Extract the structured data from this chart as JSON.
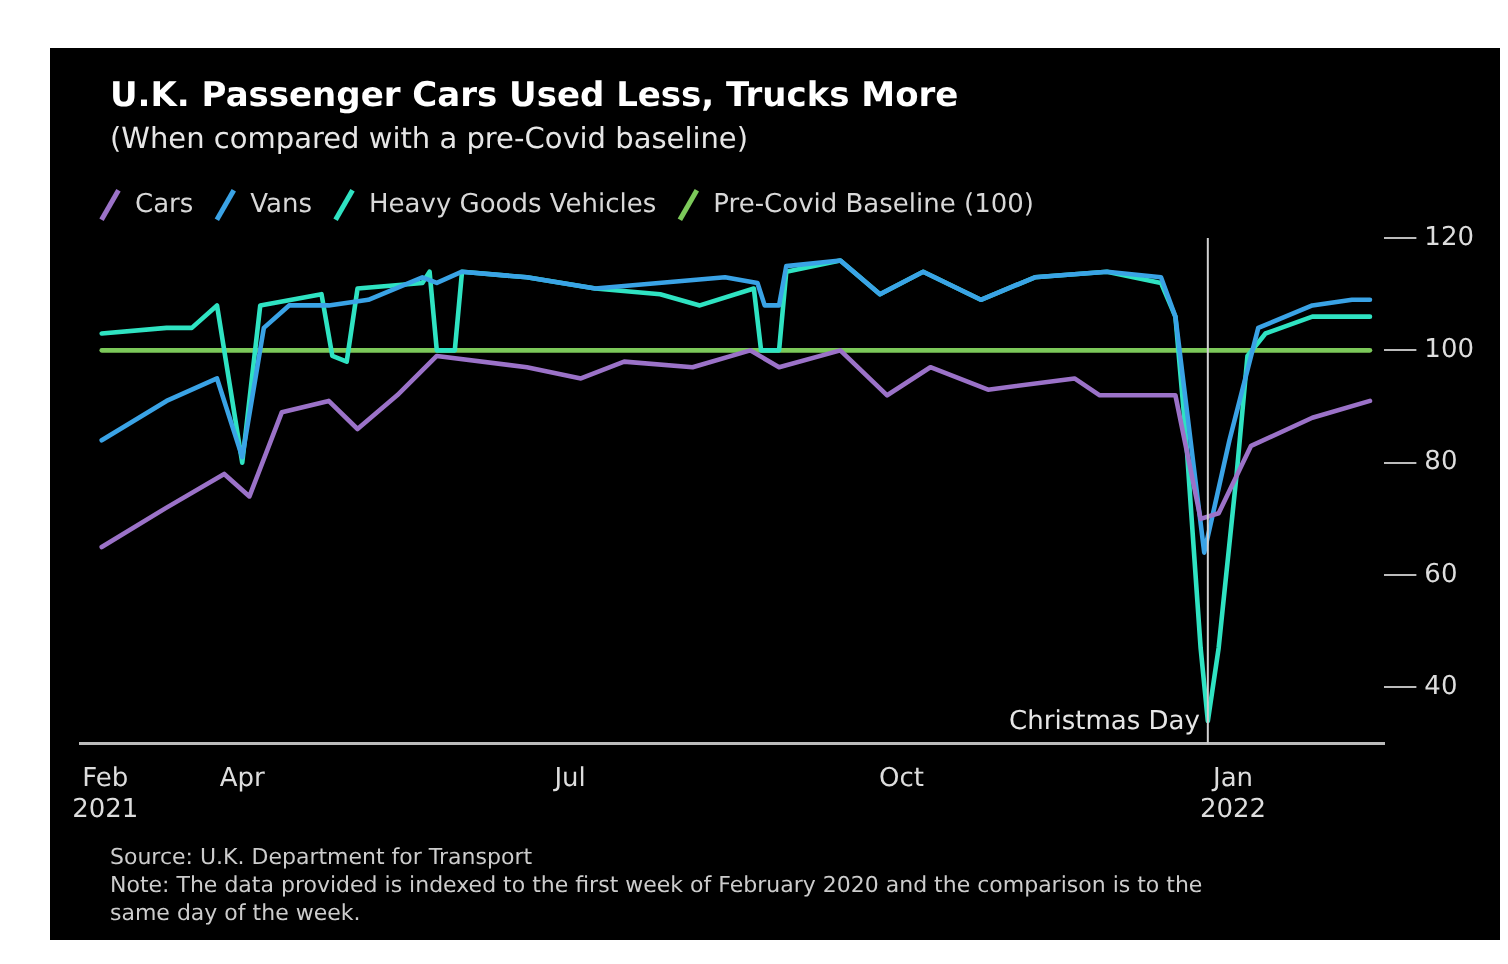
{
  "chart_data": {
    "type": "line",
    "title": "U.K. Passenger Cars Used Less, Trucks More",
    "subtitle": "(When compared with a pre-Covid baseline)",
    "series": [
      {
        "name": "Cars",
        "color": "#9b72c8",
        "x": [
          "2021-02-21",
          "2021-03-11",
          "2021-03-27",
          "2021-04-03",
          "2021-04-12",
          "2021-04-25",
          "2021-05-03",
          "2021-05-14",
          "2021-05-25",
          "2021-06-19",
          "2021-07-04",
          "2021-07-16",
          "2021-08-04",
          "2021-08-20",
          "2021-08-28",
          "2021-09-14",
          "2021-09-27",
          "2021-10-09",
          "2021-10-25",
          "2021-11-18",
          "2021-11-25",
          "2021-12-16",
          "2021-12-23",
          "2021-12-28",
          "2022-01-06",
          "2022-01-23",
          "2022-02-08"
        ],
        "values": [
          65,
          72,
          78,
          74,
          89,
          91,
          86,
          92,
          99,
          97,
          95,
          98,
          97,
          100,
          97,
          100,
          92,
          97,
          93,
          95,
          92,
          92,
          70,
          71,
          83,
          88,
          91
        ]
      },
      {
        "name": "Vans",
        "color": "#3aa3e6",
        "x": [
          "2021-02-21",
          "2021-03-11",
          "2021-03-25",
          "2021-04-01",
          "2021-04-07",
          "2021-04-14",
          "2021-04-25",
          "2021-05-06",
          "2021-05-21",
          "2021-05-25",
          "2021-06-01",
          "2021-06-19",
          "2021-07-08",
          "2021-08-13",
          "2021-08-22",
          "2021-08-24",
          "2021-08-28",
          "2021-08-30",
          "2021-09-14",
          "2021-09-25",
          "2021-10-07",
          "2021-10-23",
          "2021-11-07",
          "2021-11-27",
          "2021-12-12",
          "2021-12-16",
          "2021-12-24",
          "2021-12-31",
          "2022-01-08",
          "2022-01-23",
          "2022-02-03",
          "2022-02-08"
        ],
        "values": [
          84,
          91,
          95,
          81,
          104,
          108,
          108,
          109,
          113,
          112,
          114,
          113,
          111,
          113,
          112,
          108,
          108,
          115,
          116,
          110,
          114,
          109,
          113,
          114,
          113,
          106,
          64,
          84,
          104,
          108,
          109,
          109
        ]
      },
      {
        "name": "Heavy Goods Vehicles",
        "color": "#2fe3c2",
        "x": [
          "2021-02-21",
          "2021-03-11",
          "2021-03-18",
          "2021-03-25",
          "2021-04-01",
          "2021-04-06",
          "2021-04-23",
          "2021-04-26",
          "2021-04-30",
          "2021-05-03",
          "2021-05-21",
          "2021-05-23",
          "2021-05-25",
          "2021-05-30",
          "2021-06-01",
          "2021-06-19",
          "2021-07-08",
          "2021-07-26",
          "2021-08-06",
          "2021-08-21",
          "2021-08-23",
          "2021-08-28",
          "2021-08-30",
          "2021-09-14",
          "2021-09-25",
          "2021-10-07",
          "2021-10-23",
          "2021-11-07",
          "2021-11-27",
          "2021-12-12",
          "2021-12-16",
          "2021-12-19",
          "2021-12-23",
          "2021-12-25",
          "2021-12-28",
          "2022-01-02",
          "2022-01-05",
          "2022-01-10",
          "2022-01-23",
          "2022-02-08"
        ],
        "values": [
          103,
          104,
          104,
          108,
          80,
          108,
          110,
          99,
          98,
          111,
          112,
          114,
          100,
          100,
          114,
          113,
          111,
          110,
          108,
          111,
          100,
          100,
          114,
          116,
          110,
          114,
          109,
          113,
          114,
          112,
          106,
          84,
          47,
          34,
          47,
          78,
          99,
          103,
          106,
          106
        ]
      },
      {
        "name": "Pre-Covid Baseline (100)",
        "color": "#7cc95a",
        "x": [
          "2021-02-21",
          "2022-02-08"
        ],
        "values": [
          100,
          100
        ]
      }
    ],
    "xlim": [
      "2021-02-15",
      "2022-02-12"
    ],
    "xticks": [
      {
        "value": "2021-02-22",
        "label": "Feb\n2021"
      },
      {
        "value": "2021-04-01",
        "label": "Apr"
      },
      {
        "value": "2021-07-01",
        "label": "Jul"
      },
      {
        "value": "2021-10-01",
        "label": "Oct"
      },
      {
        "value": "2022-01-01",
        "label": "Jan\n2022"
      }
    ],
    "ylim": [
      30,
      120
    ],
    "yticks": [
      40,
      60,
      80,
      100,
      120
    ],
    "ref_lines": [
      {
        "axis": "x",
        "value": "2021-12-25",
        "label": "Christmas Day",
        "color": "#d0d0d0"
      }
    ],
    "legend": "top left",
    "marker": "none",
    "line_style": "solid",
    "annotations": [
      "Source: U.K. Department for Transport",
      "Note: The data provided is indexed to the first week of February 2020 and the comparison is to the same day of the week."
    ]
  }
}
